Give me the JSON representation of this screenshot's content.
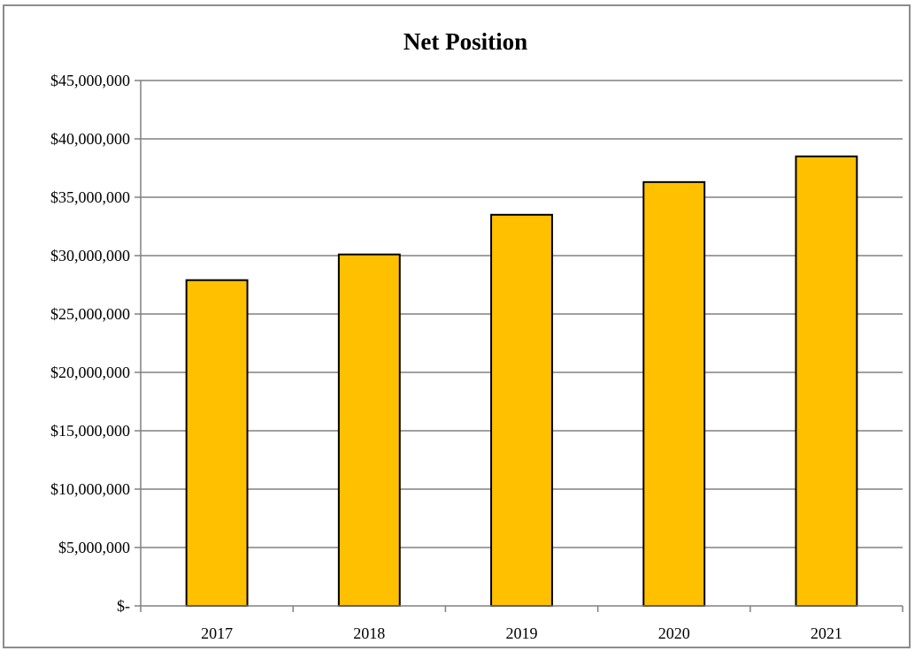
{
  "chart_data": {
    "type": "bar",
    "title": "Net Position",
    "xlabel": "",
    "ylabel": "",
    "categories": [
      "2017",
      "2018",
      "2019",
      "2020",
      "2021"
    ],
    "values": [
      27900000,
      30100000,
      33500000,
      36300000,
      38500000
    ],
    "ylim": [
      0,
      45000000
    ],
    "yticks": [
      0,
      5000000,
      10000000,
      15000000,
      20000000,
      25000000,
      30000000,
      35000000,
      40000000,
      45000000
    ],
    "ytick_labels": [
      "$-",
      "$5,000,000",
      "$10,000,000",
      "$15,000,000",
      "$20,000,000",
      "$25,000,000",
      "$30,000,000",
      "$35,000,000",
      "$40,000,000",
      "$45,000,000"
    ],
    "grid": true,
    "legend": "none",
    "colors": {
      "bar_fill": "#FFC000",
      "bar_stroke": "#000000",
      "grid": "#808080",
      "axis": "#808080"
    }
  }
}
